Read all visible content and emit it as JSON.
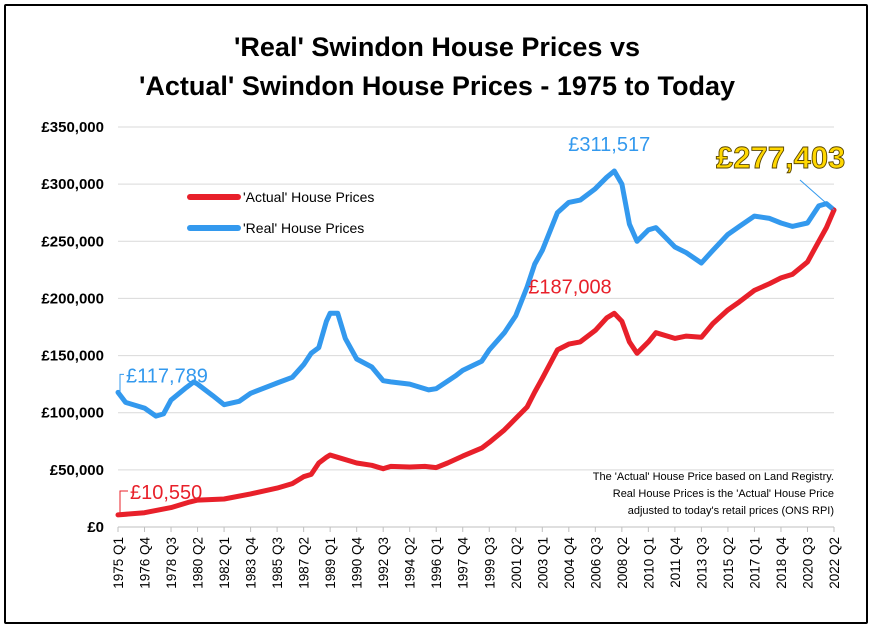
{
  "chart_data": {
    "type": "line",
    "title_line1": "'Real' Swindon House Prices vs",
    "title_line2": "'Actual' Swindon House Prices - 1975 to Today",
    "ylim": [
      0,
      350000
    ],
    "yticks": [
      {
        "value": 0,
        "label": "£0"
      },
      {
        "value": 50000,
        "label": "£50,000"
      },
      {
        "value": 100000,
        "label": "£100,000"
      },
      {
        "value": 150000,
        "label": "£150,000"
      },
      {
        "value": 200000,
        "label": "£200,000"
      },
      {
        "value": 250000,
        "label": "£250,000"
      },
      {
        "value": 300000,
        "label": "£300,000"
      },
      {
        "value": 350000,
        "label": "£350,000"
      }
    ],
    "x_start": {
      "year": 1975,
      "quarter": 1
    },
    "x_end": {
      "year": 2022,
      "quarter": 2
    },
    "x_tick_labels": [
      "1975 Q1",
      "1976 Q4",
      "1978 Q3",
      "1980 Q2",
      "1982 Q1",
      "1983 Q4",
      "1985 Q3",
      "1987 Q2",
      "1989 Q1",
      "1990 Q4",
      "1992 Q3",
      "1994 Q2",
      "1996 Q1",
      "1997 Q4",
      "1999 Q3",
      "2001 Q2",
      "2003 Q1",
      "2004 Q4",
      "2006 Q3",
      "2008 Q2",
      "2010 Q1",
      "2011 Q4",
      "2013 Q3",
      "2015 Q2",
      "2017 Q1",
      "2018 Q4",
      "2020 Q3",
      "2022 Q2"
    ],
    "grid": true,
    "legend_position": "upper-left",
    "series": [
      {
        "name": "'Actual' House Prices",
        "color": "#e8202a",
        "points": [
          [
            "1975 Q1",
            10550
          ],
          [
            "1976 Q4",
            12500
          ],
          [
            "1978 Q3",
            17000
          ],
          [
            "1979 Q4",
            22000
          ],
          [
            "1980 Q2",
            23500
          ],
          [
            "1982 Q1",
            24500
          ],
          [
            "1983 Q4",
            29000
          ],
          [
            "1985 Q3",
            34000
          ],
          [
            "1986 Q3",
            38000
          ],
          [
            "1987 Q2",
            44000
          ],
          [
            "1987 Q4",
            46000
          ],
          [
            "1988 Q2",
            56000
          ],
          [
            "1988 Q4",
            61000
          ],
          [
            "1989 Q1",
            63000
          ],
          [
            "1989 Q3",
            61000
          ],
          [
            "1990 Q4",
            56000
          ],
          [
            "1991 Q4",
            54000
          ],
          [
            "1992 Q3",
            51000
          ],
          [
            "1993 Q1",
            53000
          ],
          [
            "1994 Q2",
            52500
          ],
          [
            "1995 Q2",
            53000
          ],
          [
            "1996 Q1",
            52000
          ],
          [
            "1996 Q4",
            56000
          ],
          [
            "1997 Q4",
            62000
          ],
          [
            "1999 Q1",
            69000
          ],
          [
            "1999 Q3",
            74000
          ],
          [
            "2000 Q3",
            85000
          ],
          [
            "2001 Q2",
            95000
          ],
          [
            "2002 Q1",
            105000
          ],
          [
            "2002 Q3",
            118000
          ],
          [
            "2003 Q1",
            130000
          ],
          [
            "2004 Q1",
            155000
          ],
          [
            "2004 Q4",
            160000
          ],
          [
            "2005 Q3",
            162000
          ],
          [
            "2006 Q3",
            172000
          ],
          [
            "2007 Q2",
            183000
          ],
          [
            "2007 Q4",
            187008
          ],
          [
            "2008 Q2",
            180000
          ],
          [
            "2008 Q4",
            162000
          ],
          [
            "2009 Q2",
            152000
          ],
          [
            "2010 Q1",
            162000
          ],
          [
            "2010 Q3",
            170000
          ],
          [
            "2011 Q4",
            165000
          ],
          [
            "2012 Q3",
            167000
          ],
          [
            "2013 Q3",
            166000
          ],
          [
            "2014 Q2",
            178000
          ],
          [
            "2015 Q2",
            190000
          ],
          [
            "2016 Q1",
            197000
          ],
          [
            "2017 Q1",
            207000
          ],
          [
            "2018 Q1",
            213000
          ],
          [
            "2018 Q4",
            218000
          ],
          [
            "2019 Q3",
            221000
          ],
          [
            "2020 Q3",
            232000
          ],
          [
            "2021 Q2",
            250000
          ],
          [
            "2021 Q4",
            262000
          ],
          [
            "2022 Q2",
            277403
          ]
        ]
      },
      {
        "name": "'Real' House Prices",
        "color": "#3399ee",
        "points": [
          [
            "1975 Q1",
            117789
          ],
          [
            "1975 Q3",
            109000
          ],
          [
            "1976 Q4",
            104000
          ],
          [
            "1977 Q3",
            97000
          ],
          [
            "1978 Q1",
            99000
          ],
          [
            "1978 Q3",
            111000
          ],
          [
            "1979 Q3",
            122000
          ],
          [
            "1980 Q1",
            127000
          ],
          [
            "1980 Q2",
            125000
          ],
          [
            "1981 Q2",
            115000
          ],
          [
            "1982 Q1",
            107000
          ],
          [
            "1983 Q1",
            110000
          ],
          [
            "1983 Q4",
            117000
          ],
          [
            "1985 Q3",
            126000
          ],
          [
            "1986 Q3",
            131000
          ],
          [
            "1987 Q2",
            142000
          ],
          [
            "1987 Q4",
            152000
          ],
          [
            "1988 Q2",
            157000
          ],
          [
            "1988 Q4",
            180000
          ],
          [
            "1989 Q1",
            187000
          ],
          [
            "1989 Q3",
            187000
          ],
          [
            "1990 Q1",
            165000
          ],
          [
            "1990 Q4",
            147000
          ],
          [
            "1991 Q4",
            140000
          ],
          [
            "1992 Q3",
            128000
          ],
          [
            "1993 Q1",
            127000
          ],
          [
            "1994 Q2",
            125000
          ],
          [
            "1995 Q3",
            120000
          ],
          [
            "1996 Q1",
            121000
          ],
          [
            "1997 Q2",
            132000
          ],
          [
            "1997 Q4",
            137000
          ],
          [
            "1999 Q1",
            145000
          ],
          [
            "1999 Q3",
            155000
          ],
          [
            "2000 Q3",
            170000
          ],
          [
            "2001 Q2",
            185000
          ],
          [
            "2002 Q1",
            210000
          ],
          [
            "2002 Q3",
            230000
          ],
          [
            "2003 Q1",
            242000
          ],
          [
            "2004 Q1",
            275000
          ],
          [
            "2004 Q4",
            284000
          ],
          [
            "2005 Q3",
            286000
          ],
          [
            "2006 Q3",
            296000
          ],
          [
            "2007 Q2",
            306000
          ],
          [
            "2007 Q4",
            311517
          ],
          [
            "2008 Q2",
            300000
          ],
          [
            "2008 Q4",
            265000
          ],
          [
            "2009 Q2",
            250000
          ],
          [
            "2010 Q1",
            260000
          ],
          [
            "2010 Q3",
            262000
          ],
          [
            "2011 Q4",
            245000
          ],
          [
            "2012 Q3",
            240000
          ],
          [
            "2013 Q3",
            231000
          ],
          [
            "2014 Q2",
            242000
          ],
          [
            "2015 Q2",
            256000
          ],
          [
            "2016 Q1",
            263000
          ],
          [
            "2017 Q1",
            272000
          ],
          [
            "2018 Q1",
            270000
          ],
          [
            "2018 Q4",
            266000
          ],
          [
            "2019 Q3",
            263000
          ],
          [
            "2020 Q3",
            266000
          ],
          [
            "2021 Q2",
            281000
          ],
          [
            "2021 Q4",
            283000
          ],
          [
            "2022 Q2",
            277403
          ]
        ]
      }
    ],
    "annotations": [
      {
        "text": "£117,789",
        "series": 1,
        "at": "1975 Q1",
        "color": "#3399ee"
      },
      {
        "text": "£10,550",
        "series": 0,
        "at": "1975 Q1",
        "color": "#e8202a"
      },
      {
        "text": "£311,517",
        "series": 1,
        "at": "2007 Q4",
        "color": "#3399ee"
      },
      {
        "text": "£187,008",
        "series": 0,
        "at": "2007 Q4",
        "color": "#e8202a"
      },
      {
        "text": "£277,403",
        "series": 1,
        "at": "2022 Q2",
        "color": "#ffd700"
      }
    ],
    "note_lines": [
      "The 'Actual' House Price based on Land Registry.",
      "Real House Prices is the 'Actual' House Price",
      "adjusted to today's retail prices (ONS RPI)"
    ]
  }
}
